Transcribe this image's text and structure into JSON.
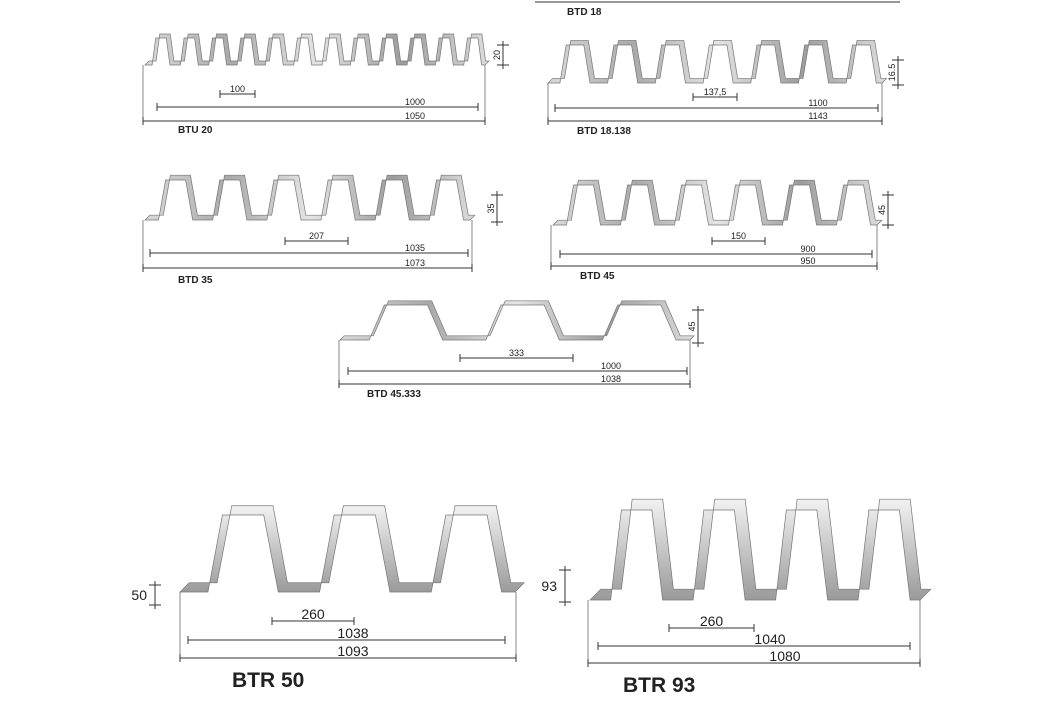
{
  "top_label": "BTD 18",
  "profiles": [
    {
      "name": "BTU 20",
      "height": "20",
      "pitch": "100",
      "cover_width": "1000",
      "total_width": "1050"
    },
    {
      "name": "BTD 18.138",
      "height": "16.5",
      "pitch": "137,5",
      "cover_width": "1100",
      "total_width": "1143"
    },
    {
      "name": "BTD 35",
      "height": "35",
      "pitch": "207",
      "cover_width": "1035",
      "total_width": "1073"
    },
    {
      "name": "BTD 45",
      "height": "45",
      "pitch": "150",
      "cover_width": "900",
      "total_width": "950"
    },
    {
      "name": "BTD 45.333",
      "height": "45",
      "pitch": "333",
      "cover_width": "1000",
      "total_width": "1038"
    },
    {
      "name": "BTR 50",
      "height": "50",
      "pitch": "260",
      "cover_width": "1038",
      "total_width": "1093"
    },
    {
      "name": "BTR 93",
      "height": "93",
      "pitch": "260",
      "cover_width": "1040",
      "total_width": "1080"
    }
  ]
}
